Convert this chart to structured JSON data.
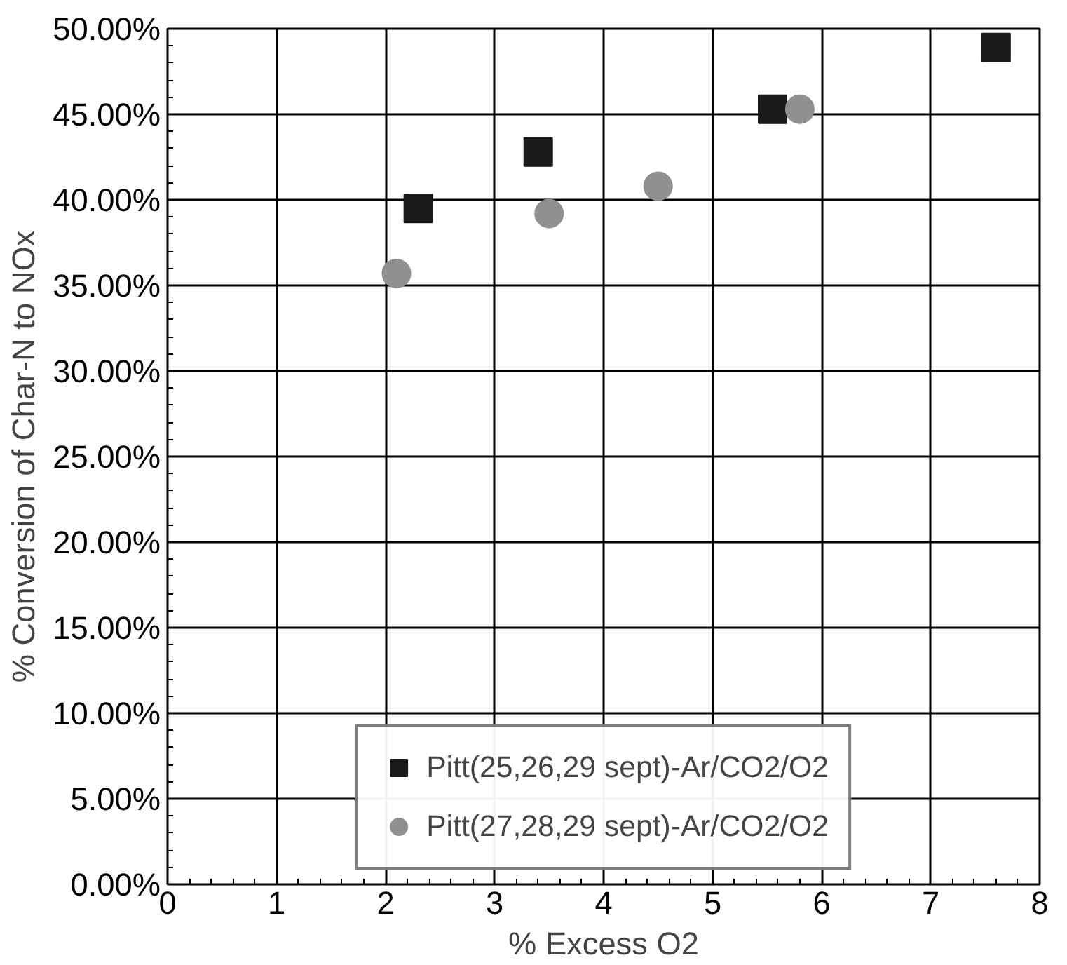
{
  "chart_data": {
    "type": "scatter",
    "xlabel": "% Excess O2",
    "ylabel": "% Conversion of Char-N to NOx",
    "xlim": [
      0,
      8
    ],
    "xticks": [
      0,
      1,
      2,
      3,
      4,
      5,
      6,
      7,
      8
    ],
    "ylim": [
      0,
      50
    ],
    "yticks": [
      {
        "value": 0,
        "label": "0.00%"
      },
      {
        "value": 5,
        "label": "5.00%"
      },
      {
        "value": 10,
        "label": "10.00%"
      },
      {
        "value": 15,
        "label": "15.00%"
      },
      {
        "value": 20,
        "label": "20.00%"
      },
      {
        "value": 25,
        "label": "25.00%"
      },
      {
        "value": 30,
        "label": "30.00%"
      },
      {
        "value": 35,
        "label": "35.00%"
      },
      {
        "value": 40,
        "label": "40.00%"
      },
      {
        "value": 45,
        "label": "45.00%"
      },
      {
        "value": 50,
        "label": "50.00%"
      }
    ],
    "grid": true,
    "legend": "bottom",
    "series": [
      {
        "name": "Pitt(25,26,29 sept)-Ar/CO2/O2",
        "color": "#1a1a1a",
        "marker": "square",
        "x": [
          2.3,
          3.4,
          5.55,
          7.6
        ],
        "values": [
          39.5,
          42.8,
          45.3,
          48.9
        ]
      },
      {
        "name": "Pitt(27,28,29 sept)-Ar/CO2/O2",
        "color": "#909090",
        "marker": "circle",
        "x": [
          2.1,
          3.5,
          4.5,
          5.8
        ],
        "values": [
          35.7,
          39.2,
          40.8,
          45.3
        ]
      }
    ]
  }
}
